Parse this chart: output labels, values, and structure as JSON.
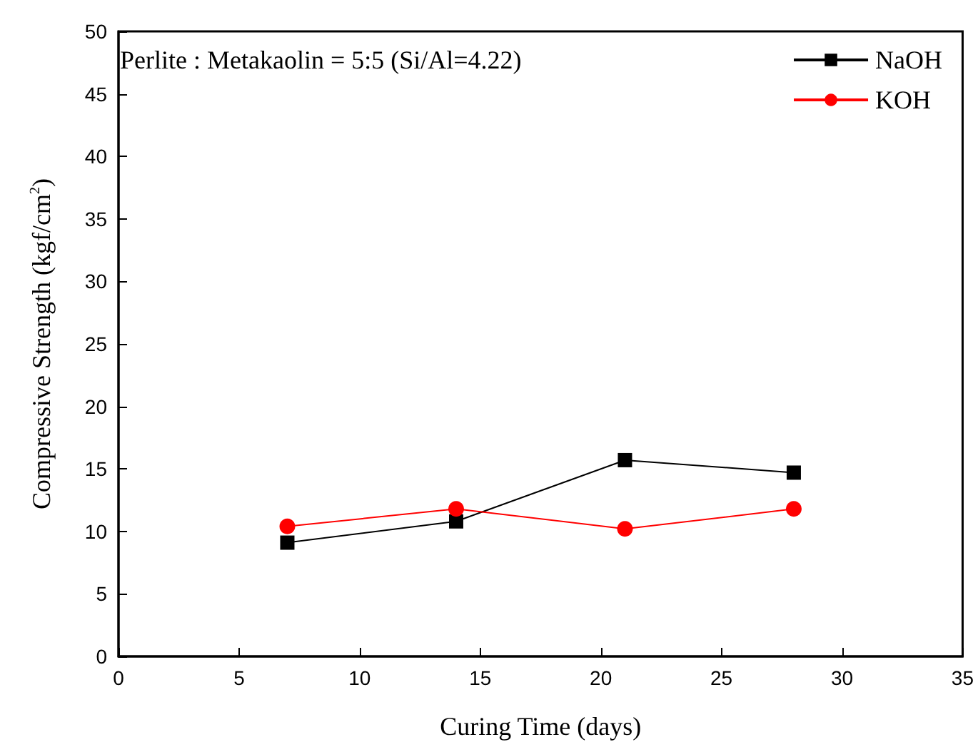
{
  "chart_data": {
    "type": "line",
    "xlabel": "Curing Time (days)",
    "ylabel": "Compressive Strength (kgf/cm$^{2}$)",
    "annotations": [
      "Perlite : Metakaolin = 5:5 (Si/Al=4.22)"
    ],
    "x": [
      7,
      14,
      21,
      28
    ],
    "series": [
      {
        "name": "NaOH",
        "color": "#000000",
        "marker": "square",
        "values": [
          9.1,
          10.8,
          15.7,
          14.7
        ]
      },
      {
        "name": "KOH",
        "color": "#ff0000",
        "marker": "circle",
        "values": [
          10.4,
          11.8,
          10.2,
          11.8
        ]
      }
    ],
    "xlim": [
      0,
      35
    ],
    "xticks": [
      0,
      5,
      10,
      15,
      20,
      25,
      30,
      35
    ],
    "ylim": [
      0,
      50
    ],
    "yticks": [
      0,
      5,
      10,
      15,
      20,
      25,
      30,
      35,
      40,
      45,
      50
    ],
    "grid": false,
    "legend": "top right",
    "line_style": "solid"
  }
}
